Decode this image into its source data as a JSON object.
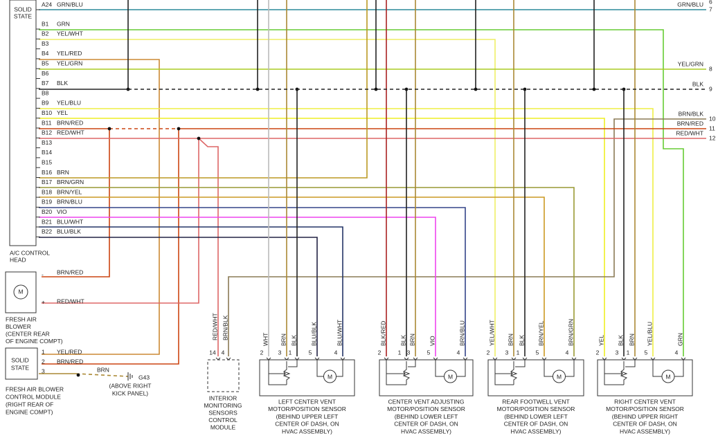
{
  "control_head": {
    "title": [
      "SOLID",
      "STATE"
    ],
    "name": [
      "A/C CONTROL",
      "HEAD"
    ],
    "pins": [
      {
        "pin": "A24",
        "wire": "GRN/BLU"
      },
      {
        "pin": "B1",
        "wire": "GRN"
      },
      {
        "pin": "B2",
        "wire": "YEL/WHT"
      },
      {
        "pin": "B3"
      },
      {
        "pin": "B4",
        "wire": "YEL/RED"
      },
      {
        "pin": "B5",
        "wire": "YEL/GRN"
      },
      {
        "pin": "B6"
      },
      {
        "pin": "B7",
        "wire": "BLK"
      },
      {
        "pin": "B8"
      },
      {
        "pin": "B9",
        "wire": "YEL/BLU"
      },
      {
        "pin": "B10",
        "wire": "YEL"
      },
      {
        "pin": "B11",
        "wire": "BRN/RED"
      },
      {
        "pin": "B12",
        "wire": "RED/WHT"
      },
      {
        "pin": "B13"
      },
      {
        "pin": "B14"
      },
      {
        "pin": "B15"
      },
      {
        "pin": "B16",
        "wire": "BRN"
      },
      {
        "pin": "B17",
        "wire": "BRN/GRN"
      },
      {
        "pin": "B18",
        "wire": "BRN/YEL"
      },
      {
        "pin": "B19",
        "wire": "BRN/BLU"
      },
      {
        "pin": "B20",
        "wire": "VIO"
      },
      {
        "pin": "B21",
        "wire": "BLU/WHT"
      },
      {
        "pin": "B22",
        "wire": "BLU/BLK"
      }
    ]
  },
  "right_labels": [
    {
      "number": "6"
    },
    {
      "wire": "GRN/BLU",
      "number": "7"
    },
    {
      "wire": "YEL/GRN",
      "number": "8"
    },
    {
      "wire": "BLK",
      "number": "9"
    },
    {
      "wire": "BRN/BLK",
      "number": "10"
    },
    {
      "wire": "BRN/RED",
      "number": "11"
    },
    {
      "wire": "RED/WHT",
      "number": "12"
    }
  ],
  "blower": {
    "minus": "-",
    "plus": "+",
    "wire_minus": "BRN/RED",
    "wire_plus": "RED/WHT",
    "motor": "M",
    "lines": [
      "FRESH AIR",
      "BLOWER",
      "(CENTER REAR",
      "OF ENGINE COMPT)"
    ]
  },
  "blower_module": {
    "title": [
      "SOLID",
      "STATE"
    ],
    "pins": [
      {
        "number": "1",
        "wire": "YEL/RED"
      },
      {
        "number": "2",
        "wire": "BRN/RED"
      },
      {
        "number": "3",
        "wire": "BRN"
      }
    ],
    "ground": "G43",
    "ground_note": [
      "(ABOVE RIGHT",
      "KICK PANEL)"
    ],
    "lines": [
      "FRESH AIR BLOWER",
      "CONTROL MODULE",
      "(RIGHT REAR OF",
      "ENGINE COMPT)"
    ]
  },
  "interior": {
    "pins": [
      {
        "wire": "RED/WHT",
        "number": "14"
      },
      {
        "wire": "BRN/BLK",
        "number": "4"
      }
    ],
    "lines": [
      "INTERIOR",
      "MONITORING",
      "SENSORS",
      "CONTROL",
      "MODULE"
    ]
  },
  "actuators": [
    {
      "pins": [
        {
          "wire": "WHT",
          "number": "2"
        },
        {
          "wire": "BRN",
          "number": "3"
        },
        {
          "wire": "BLK",
          "number": "1"
        },
        {
          "wire": "BLU/BLK",
          "number": "5"
        },
        {
          "wire": "BLU/WHT",
          "number": "4"
        }
      ],
      "motor": "M",
      "lines": [
        "LEFT CENTER VENT",
        "MOTOR/POSITION SENSOR",
        "(BEHIND UPPER LEFT",
        "CENTER OF DASH, ON",
        "HVAC ASSEMBLY)"
      ]
    },
    {
      "pins": [
        {
          "wire": "BLK/RED",
          "number": "2"
        },
        {
          "wire": "BLK",
          "number": "1"
        },
        {
          "wire": "BRN",
          "number": "3"
        },
        {
          "wire": "VIO",
          "number": "5"
        },
        {
          "wire": "BRN/BLU",
          "number": "4"
        }
      ],
      "motor": "M",
      "lines": [
        "CENTER VENT ADJUSTING",
        "MOTOR/POSITION SENSOR",
        "(BEHIND LOWER LEFT",
        "CENTER OF DASH, ON",
        "HVAC ASSEMBLY)"
      ]
    },
    {
      "pins": [
        {
          "wire": "YEL/WHT",
          "number": "2"
        },
        {
          "wire": "BRN",
          "number": "3"
        },
        {
          "wire": "BLK",
          "number": "1"
        },
        {
          "wire": "BRN/YEL",
          "number": "5"
        },
        {
          "wire": "BRN/GRN",
          "number": "4"
        }
      ],
      "motor": "M",
      "lines": [
        "REAR FOOTWELL VENT",
        "MOTOR/POSITION SENSOR",
        "(BEHIND LOWER LEFT",
        "CENTER OF DASH, ON",
        "HVAC ASSEMBLY)"
      ]
    },
    {
      "pins": [
        {
          "wire": "YEL",
          "number": "2"
        },
        {
          "wire": "BLK",
          "number": "3"
        },
        {
          "wire": "BRN",
          "number": "1"
        },
        {
          "wire": "YEL/BLU",
          "number": "5"
        },
        {
          "wire": "GRN",
          "number": "4"
        }
      ],
      "motor": "M",
      "lines": [
        "RIGHT CENTER VENT",
        "MOTOR/POSITION SENSOR",
        "(BEHIND UPPER RIGHT",
        "CENTER OF DASH, ON",
        "HVAC ASSEMBLY)"
      ]
    }
  ]
}
